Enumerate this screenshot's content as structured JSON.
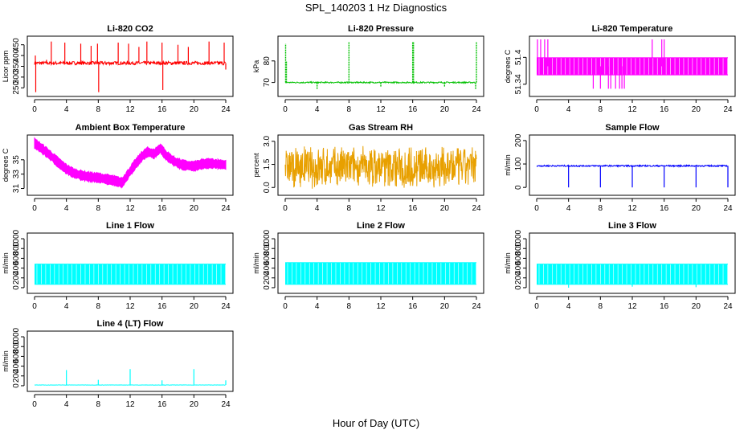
{
  "figure": {
    "title": "SPL_140203  1 Hz Diagnostics",
    "xlabel": "Hour of Day (UTC)"
  },
  "chart_data": [
    {
      "id": "co2",
      "type": "line",
      "title": "Li-820 CO2",
      "ylabel": "Licor ppm",
      "color": "#ff0000",
      "xlim": [
        0,
        24
      ],
      "ylim": [
        225,
        475
      ],
      "yticks": [
        250,
        300,
        350,
        400,
        450
      ],
      "xticks": [
        0,
        4,
        8,
        12,
        16,
        20,
        24
      ],
      "series": [
        {
          "kind": "noise",
          "base": 365,
          "amp": 8,
          "spikes": [
            [
              0.1,
              400
            ],
            [
              0.15,
              230
            ],
            [
              1.5,
              380
            ],
            [
              2.1,
              465
            ],
            [
              3.8,
              460
            ],
            [
              5.8,
              455
            ],
            [
              7.1,
              445
            ],
            [
              7.9,
              455
            ],
            [
              8.05,
              230
            ],
            [
              10.5,
              460
            ],
            [
              11.8,
              455
            ],
            [
              13.1,
              440
            ],
            [
              14.1,
              465
            ],
            [
              16.0,
              460
            ],
            [
              16.1,
              240
            ],
            [
              18.0,
              450
            ],
            [
              19.3,
              440
            ],
            [
              21.9,
              465
            ],
            [
              23.8,
              460
            ],
            [
              24,
              335
            ]
          ]
        }
      ]
    },
    {
      "id": "pressure",
      "type": "line",
      "title": "Li-820 Pressure",
      "ylabel": "kPa",
      "color": "#00c000",
      "xlim": [
        0,
        24
      ],
      "ylim": [
        65,
        90
      ],
      "yticks": [
        70,
        80
      ],
      "xticks": [
        0,
        4,
        8,
        12,
        16,
        20,
        24
      ],
      "series": [
        {
          "kind": "noise",
          "base": 70,
          "amp": 0.3,
          "spikes": [
            [
              0.05,
              88
            ],
            [
              0.15,
              80
            ],
            [
              4.0,
              67
            ],
            [
              8.0,
              89
            ],
            [
              12.0,
              68
            ],
            [
              16.0,
              89
            ],
            [
              16.1,
              89
            ],
            [
              20.0,
              68
            ],
            [
              24.0,
              89
            ],
            [
              23.9,
              67
            ]
          ]
        }
      ]
    },
    {
      "id": "temp",
      "type": "line",
      "title": "Li-820 Temperature",
      "ylabel": "degrees C",
      "color": "#ff00ff",
      "xlim": [
        0,
        24
      ],
      "ylim": [
        51.32,
        51.44
      ],
      "yticks": [
        51.34,
        51.4
      ],
      "xticks": [
        0,
        4,
        8,
        12,
        16,
        20,
        24
      ],
      "series": [
        {
          "kind": "band",
          "low": 51.36,
          "high": 51.4,
          "spikes": [
            [
              0.1,
              51.44
            ],
            [
              0.5,
              51.44
            ],
            [
              1.0,
              51.44
            ],
            [
              1.4,
              51.44
            ],
            [
              14.5,
              51.44
            ],
            [
              15.7,
              51.44
            ],
            [
              16.0,
              51.44
            ],
            [
              7.1,
              51.33
            ],
            [
              8.0,
              51.33
            ],
            [
              9.0,
              51.33
            ],
            [
              9.3,
              51.33
            ],
            [
              9.9,
              51.33
            ],
            [
              10.4,
              51.33
            ],
            [
              10.7,
              51.33
            ],
            [
              11.0,
              51.33
            ]
          ]
        }
      ]
    },
    {
      "id": "boxtemp",
      "type": "line",
      "title": "Ambient Box Temperature",
      "ylabel": "degrees C",
      "color": "#ff00ff",
      "xlim": [
        0,
        24
      ],
      "ylim": [
        30.5,
        38
      ],
      "yticks": [
        31,
        33,
        35
      ],
      "xticks": [
        0,
        4,
        8,
        12,
        16,
        20,
        24
      ],
      "series": [
        {
          "kind": "curve",
          "thick": 0.6,
          "points": [
            [
              0,
              37.3
            ],
            [
              1,
              36.5
            ],
            [
              2,
              35.6
            ],
            [
              3,
              34.6
            ],
            [
              4,
              33.7
            ],
            [
              5,
              33.1
            ],
            [
              6,
              32.8
            ],
            [
              7,
              32.6
            ],
            [
              8,
              32.5
            ],
            [
              9,
              32.3
            ],
            [
              10,
              32.1
            ],
            [
              11,
              31.8
            ],
            [
              11.5,
              32.6
            ],
            [
              12.5,
              34.2
            ],
            [
              13.5,
              35.5
            ],
            [
              14.2,
              36.1
            ],
            [
              15,
              35.8
            ],
            [
              15.8,
              36.6
            ],
            [
              16.5,
              35.6
            ],
            [
              17.5,
              34.8
            ],
            [
              18.5,
              34.3
            ],
            [
              20,
              34.1
            ],
            [
              21,
              34.4
            ],
            [
              22,
              34.5
            ],
            [
              23,
              34.4
            ],
            [
              24,
              34.3
            ]
          ]
        }
      ]
    },
    {
      "id": "rh",
      "type": "line",
      "title": "Gas Stream RH",
      "ylabel": "percent",
      "color": "#e8a000",
      "xlim": [
        0,
        24
      ],
      "ylim": [
        -0.3,
        3.2
      ],
      "yticks": [
        0.0,
        1.5,
        3.0
      ],
      "yticklabels": [
        "0.0",
        "1.5",
        "3.0"
      ],
      "xticks": [
        0,
        4,
        8,
        12,
        16,
        20,
        24
      ],
      "series": [
        {
          "kind": "band",
          "low": 0.1,
          "high": 2.5,
          "dense": true
        }
      ]
    },
    {
      "id": "sampleflow",
      "type": "line",
      "title": "Sample Flow",
      "ylabel": "ml/min",
      "color": "#0000ff",
      "xlim": [
        0,
        24
      ],
      "ylim": [
        -20,
        210
      ],
      "yticks": [
        0,
        100,
        200
      ],
      "xticks": [
        0,
        4,
        8,
        12,
        16,
        20,
        24
      ],
      "series": [
        {
          "kind": "noise",
          "base": 92,
          "amp": 3,
          "spikes": [
            [
              4.0,
              0
            ],
            [
              8.0,
              0
            ],
            [
              12.0,
              0
            ],
            [
              16.0,
              0
            ],
            [
              20.0,
              0
            ],
            [
              24.0,
              0
            ]
          ]
        }
      ]
    },
    {
      "id": "line1",
      "type": "line",
      "title": "Line 1 Flow",
      "ylabel": "ml/min",
      "color": "#00ffff",
      "xlim": [
        0,
        24
      ],
      "ylim": [
        -50,
        1050
      ],
      "yticks": [
        0,
        200,
        400,
        600,
        800,
        1000
      ],
      "xticks": [
        0,
        4,
        8,
        12,
        16,
        20,
        24
      ],
      "series": [
        {
          "kind": "band",
          "low": 60,
          "high": 490
        }
      ]
    },
    {
      "id": "line2",
      "type": "line",
      "title": "Line 2 Flow",
      "ylabel": "ml/min",
      "color": "#00ffff",
      "xlim": [
        0,
        24
      ],
      "ylim": [
        -50,
        1050
      ],
      "yticks": [
        0,
        200,
        400,
        600,
        800,
        1000
      ],
      "xticks": [
        0,
        4,
        8,
        12,
        16,
        20,
        24
      ],
      "series": [
        {
          "kind": "band",
          "low": 60,
          "high": 520
        }
      ]
    },
    {
      "id": "line3",
      "type": "line",
      "title": "Line 3 Flow",
      "ylabel": "ml/min",
      "color": "#00ffff",
      "xlim": [
        0,
        24
      ],
      "ylim": [
        -50,
        1050
      ],
      "yticks": [
        0,
        200,
        400,
        600,
        800,
        1000
      ],
      "xticks": [
        0,
        4,
        8,
        12,
        16,
        20,
        24
      ],
      "series": [
        {
          "kind": "band",
          "low": 60,
          "high": 490,
          "spikes": [
            [
              4.0,
              0
            ],
            [
              12.0,
              20
            ],
            [
              20.0,
              10
            ]
          ]
        }
      ]
    },
    {
      "id": "line4",
      "type": "line",
      "title": "Line 4 (LT) Flow",
      "ylabel": "ml/min",
      "color": "#00ffff",
      "xlim": [
        0,
        24
      ],
      "ylim": [
        -50,
        1050
      ],
      "yticks": [
        0,
        200,
        400,
        600,
        800,
        1000
      ],
      "xticks": [
        0,
        4,
        8,
        12,
        16,
        20,
        24
      ],
      "series": [
        {
          "kind": "noise",
          "base": 15,
          "amp": 3,
          "spikes": [
            [
              4.0,
              320
            ],
            [
              8.0,
              120
            ],
            [
              12.0,
              340
            ],
            [
              16.0,
              110
            ],
            [
              20.0,
              340
            ],
            [
              24.0,
              110
            ]
          ]
        }
      ]
    }
  ]
}
